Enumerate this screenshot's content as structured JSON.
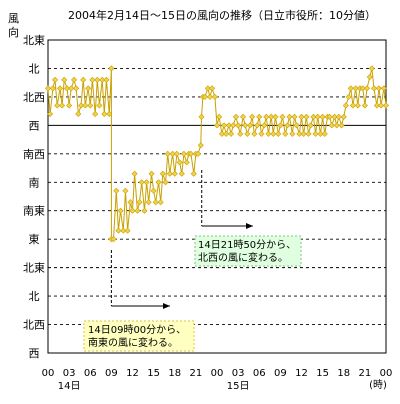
{
  "chart_data": {
    "type": "line",
    "title": "2004年2月14日～15日の風向の推移（日立市役所：10分値）",
    "ylabel": "風向",
    "xunit": "(時)",
    "y_categories": [
      "西",
      "北西",
      "北",
      "北東",
      "東",
      "南東",
      "南",
      "南西",
      "西",
      "北西",
      "北",
      "北東"
    ],
    "gridlines": "dashed for 北東, 北, 北西, 南西, 南, 南東, 東, 北東, 北; solid for 西",
    "x_tick_labels": [
      "00",
      "03",
      "06",
      "09",
      "12",
      "15",
      "18",
      "21",
      "00",
      "03",
      "06",
      "09",
      "12",
      "15",
      "18",
      "21",
      "00"
    ],
    "x_tick_hours": [
      0,
      3,
      6,
      9,
      12,
      15,
      18,
      21,
      24,
      27,
      30,
      33,
      36,
      39,
      42,
      45,
      48
    ],
    "day_labels": [
      {
        "label": "14日",
        "hour": 3
      },
      {
        "label": "15日",
        "hour": 27
      }
    ],
    "series": [
      {
        "line_color": "#c8a000",
        "marker_color": "#f2d24a",
        "marker": "diamond",
        "points": [
          [
            0.0,
            9.3
          ],
          [
            0.3,
            8.4
          ],
          [
            0.7,
            9.3
          ],
          [
            1.0,
            9.6
          ],
          [
            1.3,
            8.7
          ],
          [
            1.7,
            9.3
          ],
          [
            2.0,
            8.7
          ],
          [
            2.3,
            9.6
          ],
          [
            2.7,
            9.3
          ],
          [
            3.0,
            8.7
          ],
          [
            3.3,
            9.3
          ],
          [
            3.7,
            9.6
          ],
          [
            4.0,
            9.3
          ],
          [
            4.3,
            8.4
          ],
          [
            4.7,
            8.7
          ],
          [
            5.0,
            9.6
          ],
          [
            5.3,
            8.7
          ],
          [
            5.7,
            9.3
          ],
          [
            6.0,
            8.7
          ],
          [
            6.3,
            9.6
          ],
          [
            6.7,
            8.4
          ],
          [
            7.0,
            9.6
          ],
          [
            7.3,
            8.7
          ],
          [
            7.7,
            9.6
          ],
          [
            8.0,
            8.4
          ],
          [
            8.3,
            9.6
          ],
          [
            8.7,
            8.4
          ],
          [
            9.0,
            10.0
          ],
          [
            9.0,
            4.0
          ],
          [
            9.3,
            4.0
          ],
          [
            9.7,
            5.7
          ],
          [
            10.0,
            4.3
          ],
          [
            10.3,
            5.0
          ],
          [
            10.7,
            4.3
          ],
          [
            11.0,
            5.7
          ],
          [
            11.3,
            4.3
          ],
          [
            11.7,
            5.3
          ],
          [
            12.0,
            5.0
          ],
          [
            12.3,
            6.3
          ],
          [
            12.7,
            5.0
          ],
          [
            13.0,
            5.3
          ],
          [
            13.3,
            6.0
          ],
          [
            13.7,
            5.0
          ],
          [
            14.0,
            6.0
          ],
          [
            14.3,
            5.3
          ],
          [
            14.7,
            6.3
          ],
          [
            15.0,
            5.7
          ],
          [
            15.3,
            5.3
          ],
          [
            15.7,
            6.0
          ],
          [
            16.0,
            5.3
          ],
          [
            16.3,
            6.3
          ],
          [
            16.7,
            6.0
          ],
          [
            17.0,
            7.0
          ],
          [
            17.3,
            6.3
          ],
          [
            17.7,
            7.0
          ],
          [
            18.0,
            6.3
          ],
          [
            18.3,
            7.0
          ],
          [
            18.7,
            6.7
          ],
          [
            19.0,
            6.3
          ],
          [
            19.3,
            7.0
          ],
          [
            19.7,
            6.7
          ],
          [
            20.0,
            7.0
          ],
          [
            20.3,
            7.0
          ],
          [
            20.7,
            6.3
          ],
          [
            21.0,
            7.0
          ],
          [
            21.3,
            7.0
          ],
          [
            21.7,
            7.3
          ],
          [
            21.8,
            8.3
          ],
          [
            22.0,
            9.0
          ],
          [
            22.3,
            9.0
          ],
          [
            22.7,
            9.3
          ],
          [
            23.0,
            9.0
          ],
          [
            23.3,
            9.3
          ],
          [
            23.7,
            9.0
          ],
          [
            24.0,
            8.0
          ],
          [
            24.3,
            8.3
          ],
          [
            24.7,
            7.7
          ],
          [
            25.0,
            8.0
          ],
          [
            25.3,
            7.7
          ],
          [
            25.7,
            8.0
          ],
          [
            26.0,
            7.7
          ],
          [
            26.3,
            8.0
          ],
          [
            26.7,
            8.3
          ],
          [
            27.0,
            8.0
          ],
          [
            27.3,
            7.7
          ],
          [
            27.7,
            8.3
          ],
          [
            28.0,
            8.0
          ],
          [
            28.3,
            7.7
          ],
          [
            28.7,
            8.0
          ],
          [
            29.0,
            8.3
          ],
          [
            29.3,
            7.7
          ],
          [
            29.7,
            8.0
          ],
          [
            30.0,
            8.3
          ],
          [
            30.3,
            7.7
          ],
          [
            30.7,
            8.0
          ],
          [
            31.0,
            8.3
          ],
          [
            31.3,
            7.7
          ],
          [
            31.7,
            8.3
          ],
          [
            32.0,
            7.7
          ],
          [
            32.3,
            8.3
          ],
          [
            32.7,
            7.7
          ],
          [
            33.0,
            8.0
          ],
          [
            33.3,
            8.3
          ],
          [
            33.7,
            7.7
          ],
          [
            34.0,
            8.0
          ],
          [
            34.3,
            8.3
          ],
          [
            34.7,
            7.7
          ],
          [
            35.0,
            8.3
          ],
          [
            35.3,
            8.0
          ],
          [
            35.7,
            7.7
          ],
          [
            36.0,
            8.3
          ],
          [
            36.3,
            7.7
          ],
          [
            36.7,
            8.3
          ],
          [
            37.0,
            7.7
          ],
          [
            37.3,
            8.0
          ],
          [
            37.7,
            8.3
          ],
          [
            38.0,
            7.7
          ],
          [
            38.3,
            8.3
          ],
          [
            38.7,
            7.7
          ],
          [
            39.0,
            8.3
          ],
          [
            39.3,
            7.7
          ],
          [
            39.7,
            8.3
          ],
          [
            40.0,
            8.3
          ],
          [
            40.3,
            8.0
          ],
          [
            40.7,
            8.3
          ],
          [
            41.0,
            8.0
          ],
          [
            41.3,
            8.3
          ],
          [
            41.7,
            8.0
          ],
          [
            42.0,
            8.3
          ],
          [
            42.3,
            8.7
          ],
          [
            42.7,
            9.0
          ],
          [
            43.0,
            9.3
          ],
          [
            43.3,
            8.7
          ],
          [
            43.7,
            9.3
          ],
          [
            44.0,
            8.7
          ],
          [
            44.3,
            9.3
          ],
          [
            44.7,
            9.3
          ],
          [
            45.0,
            8.7
          ],
          [
            45.3,
            9.3
          ],
          [
            45.7,
            9.7
          ],
          [
            46.0,
            10.0
          ],
          [
            46.3,
            9.3
          ],
          [
            46.7,
            8.7
          ],
          [
            47.0,
            9.3
          ],
          [
            47.3,
            8.7
          ],
          [
            47.7,
            9.3
          ],
          [
            48.0,
            8.7
          ]
        ]
      }
    ],
    "annotations": [
      {
        "text": [
          "14日09時00分から、",
          "南東の風に変わる。"
        ],
        "background": "#ffffc0",
        "border": "#e0c040",
        "arrow_color": "#000000"
      },
      {
        "text": [
          "14日21時50分から、",
          "北西の風に変わる。"
        ],
        "background": "#e0ffe0",
        "border": "#80c080",
        "arrow_color": "#000000"
      }
    ]
  }
}
